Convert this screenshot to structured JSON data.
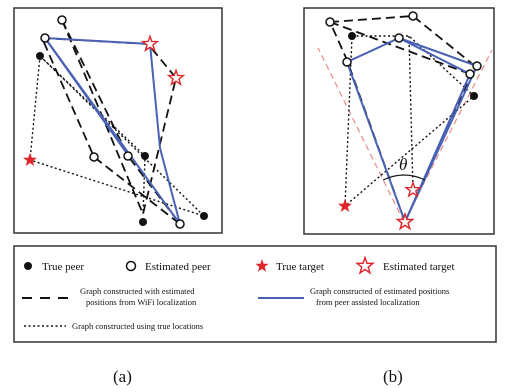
{
  "panels": [
    {
      "id": "a",
      "caption": "(a)"
    },
    {
      "id": "b",
      "caption": "(b)",
      "angle_label": "θ"
    }
  ],
  "legend": {
    "true_peer": "True peer",
    "estimated_peer": "Estimated peer",
    "true_target": "True target",
    "estimated_target": "Estimated target",
    "wifi_graph": [
      "Graph constructed with estimated",
      "positions from WiFi localization"
    ],
    "peer_graph": [
      "Graph constructed of estimated positions",
      "from peer assisted localization"
    ],
    "true_graph": "Graph constructed using true locations"
  },
  "colors": {
    "peer_graph": "#4a62b4",
    "target": "#e0262b",
    "angle_guides": "#e98a8a",
    "lines": "#111111"
  },
  "icons": {
    "true_peer": "filled-circle-icon",
    "estimated_peer": "hollow-circle-icon",
    "true_target": "filled-star-icon",
    "estimated_target": "hollow-star-icon"
  }
}
